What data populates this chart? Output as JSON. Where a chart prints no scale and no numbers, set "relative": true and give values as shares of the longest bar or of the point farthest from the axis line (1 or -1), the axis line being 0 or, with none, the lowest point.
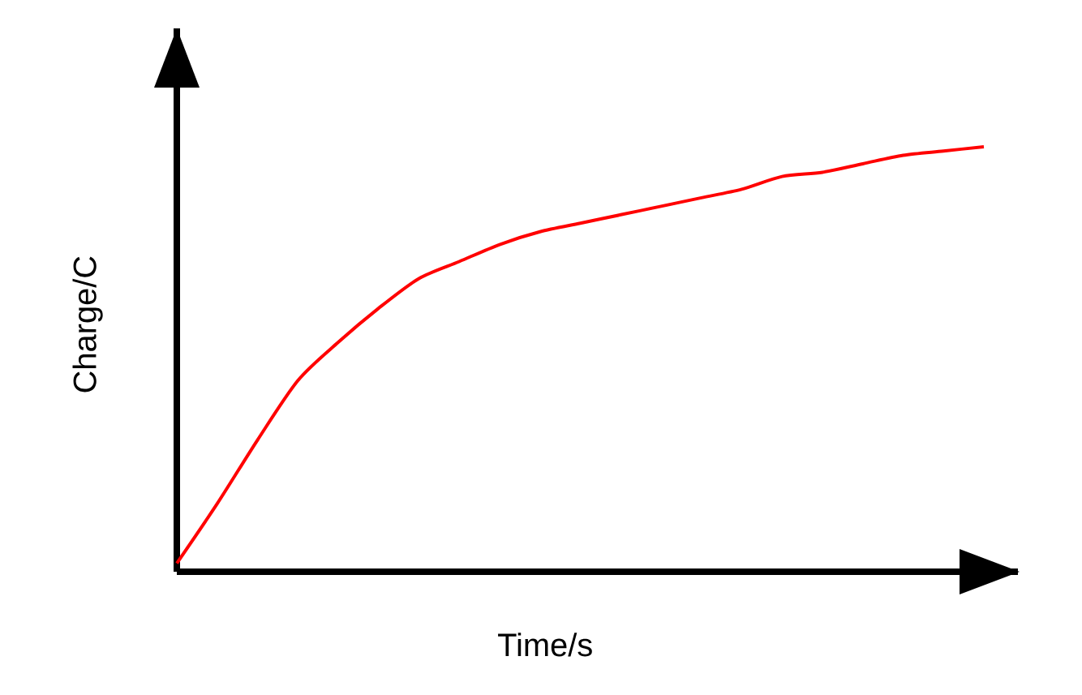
{
  "chart_data": {
    "type": "line",
    "relative": true,
    "xlabel": "Time/s",
    "ylabel": "Charge/C",
    "color": "#ff0000",
    "categories": [
      null,
      null,
      null,
      null,
      null,
      null,
      null,
      null,
      null,
      null,
      null,
      null,
      null,
      null,
      null,
      null,
      null,
      null,
      null,
      null,
      null
    ],
    "values": [
      0.02,
      0.16,
      0.31,
      0.45,
      0.54,
      0.62,
      0.69,
      0.73,
      0.77,
      0.8,
      0.82,
      0.84,
      0.86,
      0.88,
      0.9,
      0.93,
      0.94,
      0.96,
      0.98,
      0.99,
      1.0
    ]
  }
}
